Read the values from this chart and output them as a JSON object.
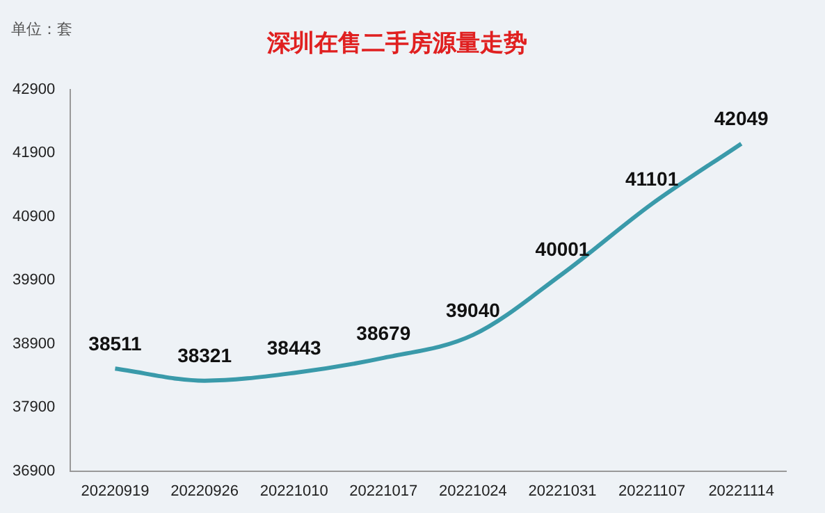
{
  "chart_data": {
    "type": "line",
    "title": "深圳在售二手房源量走势",
    "ylabel": "单位：套",
    "categories": [
      "20220919",
      "20220926",
      "20221010",
      "20221017",
      "20221024",
      "20221031",
      "20221107",
      "20221114"
    ],
    "series": [
      {
        "color": "#3a9aaa",
        "values": [
          38511,
          38321,
          38443,
          38679,
          39040,
          40001,
          41101,
          42049
        ]
      }
    ],
    "ylim": [
      36900,
      42900
    ],
    "yticks": [
      36900,
      37900,
      38900,
      39900,
      40900,
      41900,
      42900
    ],
    "grid": false,
    "legend": false,
    "marker": "none",
    "line_style": "solid",
    "data_labels": true
  }
}
